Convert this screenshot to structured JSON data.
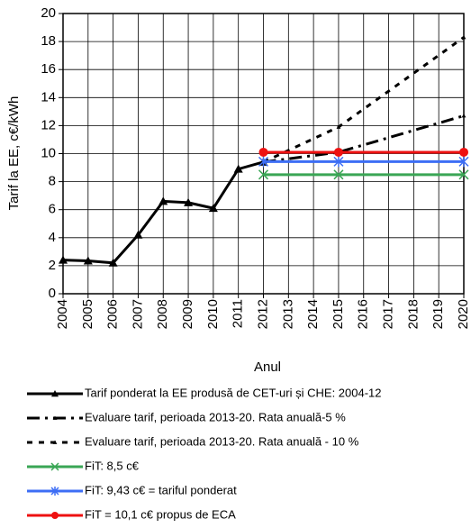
{
  "chart_data": {
    "type": "line",
    "xlabel": "Anul",
    "ylabel": "Tarif la  EE, c€/kWh",
    "xlim": [
      2004,
      2020
    ],
    "xticks": [
      2004,
      2005,
      2006,
      2007,
      2008,
      2009,
      2010,
      2011,
      2012,
      2013,
      2014,
      2015,
      2016,
      2017,
      2018,
      2019,
      2020
    ],
    "ylim": [
      0,
      20
    ],
    "yticks": [
      0,
      2,
      4,
      6,
      8,
      10,
      12,
      14,
      16,
      18,
      20
    ],
    "grid": true,
    "legend": "bottom",
    "series": [
      {
        "name": "Tarif ponderat la EE produsă de CET-uri și CHE: 2004-12",
        "color": "#000000",
        "line_style": "solid",
        "marker": "triangle",
        "x": [
          2004,
          2005,
          2006,
          2007,
          2008,
          2009,
          2010,
          2011,
          2012
        ],
        "values": [
          2.4,
          2.35,
          2.2,
          4.2,
          6.6,
          6.5,
          6.1,
          8.9,
          9.4
        ]
      },
      {
        "name": "Evaluare tarif, perioada  2013-20. Rata anuală-5 %",
        "color": "#000000",
        "line_style": "dashdot",
        "marker": "triangle",
        "x": [
          2012,
          2015,
          2020
        ],
        "values": [
          9.4,
          10.1,
          12.7
        ]
      },
      {
        "name": "Evaluare tarif, perioada  2013-20. Rata anuală - 10 %",
        "color": "#000000",
        "line_style": "dash",
        "marker": "triangle",
        "x": [
          2012,
          2015,
          2020
        ],
        "values": [
          9.4,
          11.9,
          18.3
        ]
      },
      {
        "name": "FiT: 8,5 c€",
        "color": "#3aa655",
        "line_style": "solid",
        "marker": "x",
        "x": [
          2012,
          2015,
          2020
        ],
        "values": [
          8.5,
          8.5,
          8.5
        ]
      },
      {
        "name": "FiT: 9,43 c€ = tariful ponderat",
        "color": "#3d6ef5",
        "line_style": "solid",
        "marker": "asterisk",
        "x": [
          2012,
          2015,
          2020
        ],
        "values": [
          9.43,
          9.43,
          9.43
        ]
      },
      {
        "name": "FiT = 10,1 c€ propus de ECA",
        "color": "#ee1111",
        "line_style": "solid",
        "marker": "circle",
        "x": [
          2012,
          2015,
          2020
        ],
        "values": [
          10.1,
          10.1,
          10.1
        ]
      }
    ]
  }
}
